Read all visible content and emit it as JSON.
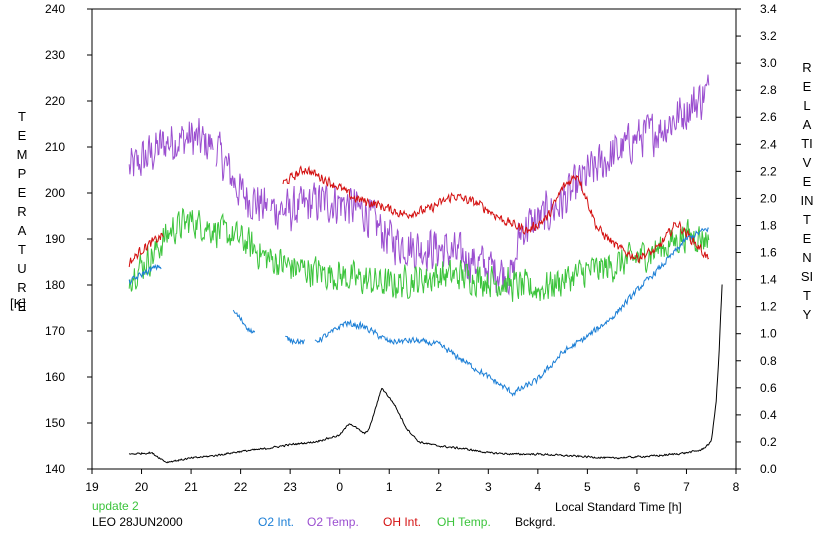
{
  "chart_data": {
    "type": "line",
    "left_axis_label": "TEMPERATURE",
    "left_axis_unit": "[K]",
    "right_axis_label": "RELATIVE INTENSITY",
    "xlabel": "Local Standard Time [h]",
    "x_ticks": [
      "19",
      "20",
      "21",
      "22",
      "23",
      "0",
      "1",
      "2",
      "3",
      "4",
      "5",
      "6",
      "7",
      "8"
    ],
    "xlim": [
      19,
      32
    ],
    "y_left_ticks": [
      "140",
      "150",
      "160",
      "170",
      "180",
      "190",
      "200",
      "210",
      "220",
      "230",
      "240"
    ],
    "ylim_left": [
      140,
      240
    ],
    "y_right_ticks": [
      "0.0",
      "0.2",
      "0.4",
      "0.6",
      "0.8",
      "1.0",
      "1.2",
      "1.4",
      "1.6",
      "1.8",
      "2.0",
      "2.2",
      "2.4",
      "2.6",
      "2.8",
      "3.0",
      "3.2",
      "3.4"
    ],
    "ylim_right": [
      0,
      3.4
    ],
    "grid": false,
    "update_label": "update 2",
    "station_label": "LEO 28JUN2000",
    "legend": [
      {
        "label": "O2 Int.",
        "color": "#1c7fd6"
      },
      {
        "label": "O2 Temp.",
        "color": "#9b4fd0"
      },
      {
        "label": "OH Int.",
        "color": "#d41010"
      },
      {
        "label": "OH Temp.",
        "color": "#3cc43c"
      },
      {
        "label": "Bckgrd.",
        "color": "#000000"
      }
    ],
    "series": [
      {
        "name": "O2 Temp.",
        "color": "#9b4fd0",
        "axis": "left",
        "noise": 8,
        "x": [
          19.75,
          20.5,
          21.0,
          21.5,
          22.0,
          22.5,
          23.0,
          23.5,
          24.0,
          24.5,
          25.0,
          25.5,
          26.0,
          26.5,
          27.0,
          27.5,
          27.65,
          28.0,
          28.5,
          29.0,
          29.5,
          30.0,
          30.5,
          31.0,
          31.45
        ],
        "y": [
          205,
          211,
          212,
          210,
          200,
          197,
          196,
          198,
          198,
          196,
          190,
          188,
          188,
          186,
          184,
          182,
          192,
          194,
          198,
          204,
          208,
          212,
          214,
          218,
          222
        ],
        "gaps": [
          [
            21.45,
            21.5
          ],
          [
            22.55,
            22.6
          ]
        ]
      },
      {
        "name": "OH Temp.",
        "color": "#3cc43c",
        "axis": "left",
        "noise": 6,
        "x": [
          19.75,
          20.2,
          20.6,
          21.0,
          21.5,
          22.0,
          22.5,
          23.0,
          23.5,
          24.0,
          24.5,
          25.0,
          25.5,
          26.0,
          26.5,
          27.0,
          27.5,
          28.0,
          28.5,
          29.0,
          29.5,
          30.0,
          30.5,
          31.0,
          31.45
        ],
        "y": [
          182,
          186,
          192,
          194,
          192,
          190,
          186,
          184,
          183,
          182,
          181,
          180,
          181,
          182,
          182,
          181,
          180,
          179,
          181,
          183,
          184,
          186,
          188,
          191,
          190
        ],
        "gaps": []
      },
      {
        "name": "OH Int.",
        "color": "#d41010",
        "axis": "right",
        "noise": 0.06,
        "x": [
          19.75,
          20.0,
          20.4,
          22.9,
          23.3,
          23.8,
          24.0,
          24.3,
          24.8,
          25.3,
          25.8,
          26.3,
          26.8,
          27.3,
          27.8,
          28.2,
          28.5,
          28.8,
          29.2,
          29.6,
          30.0,
          30.4,
          30.8,
          31.2,
          31.45
        ],
        "y": [
          1.52,
          1.62,
          1.72,
          2.12,
          2.22,
          2.12,
          2.08,
          2.0,
          1.95,
          1.88,
          1.92,
          2.02,
          1.96,
          1.84,
          1.76,
          1.86,
          2.08,
          2.18,
          1.78,
          1.64,
          1.56,
          1.62,
          1.82,
          1.66,
          1.55
        ],
        "gaps": [
          [
            20.45,
            22.85
          ]
        ]
      },
      {
        "name": "O2 Int.",
        "color": "#1c7fd6",
        "axis": "right",
        "noise": 0.04,
        "x": [
          19.75,
          20.05,
          20.35,
          21.9,
          22.2,
          22.6,
          23.0,
          23.4,
          23.8,
          24.1,
          24.5,
          25.0,
          25.5,
          26.0,
          26.5,
          27.0,
          27.5,
          28.0,
          28.5,
          29.0,
          29.5,
          30.0,
          30.5,
          31.0,
          31.45
        ],
        "y": [
          1.38,
          1.45,
          1.5,
          1.15,
          1.02,
          0.98,
          0.96,
          0.92,
          1.0,
          1.08,
          1.05,
          0.94,
          0.95,
          0.92,
          0.8,
          0.68,
          0.56,
          0.66,
          0.86,
          0.98,
          1.12,
          1.32,
          1.5,
          1.7,
          1.78
        ],
        "gaps": [
          [
            20.4,
            21.85
          ],
          [
            22.3,
            22.9
          ],
          [
            23.3,
            23.5
          ]
        ]
      },
      {
        "name": "Bckgrd.",
        "color": "#000000",
        "axis": "right",
        "noise": 0.012,
        "x": [
          19.75,
          20.2,
          20.5,
          21.0,
          21.5,
          22.0,
          22.5,
          23.0,
          23.5,
          24.0,
          24.2,
          24.5,
          24.6,
          24.85,
          25.1,
          25.35,
          25.6,
          26.0,
          26.5,
          27.0,
          27.5,
          28.0,
          28.5,
          29.0,
          29.5,
          30.0,
          30.5,
          31.0,
          31.3,
          31.5,
          31.6,
          31.65,
          31.73
        ],
        "y": [
          0.11,
          0.12,
          0.05,
          0.08,
          0.1,
          0.13,
          0.15,
          0.18,
          0.2,
          0.25,
          0.34,
          0.26,
          0.3,
          0.6,
          0.48,
          0.3,
          0.2,
          0.17,
          0.15,
          0.12,
          0.11,
          0.11,
          0.1,
          0.09,
          0.08,
          0.09,
          0.1,
          0.12,
          0.14,
          0.2,
          0.5,
          0.8,
          1.45
        ],
        "gaps": []
      }
    ]
  }
}
